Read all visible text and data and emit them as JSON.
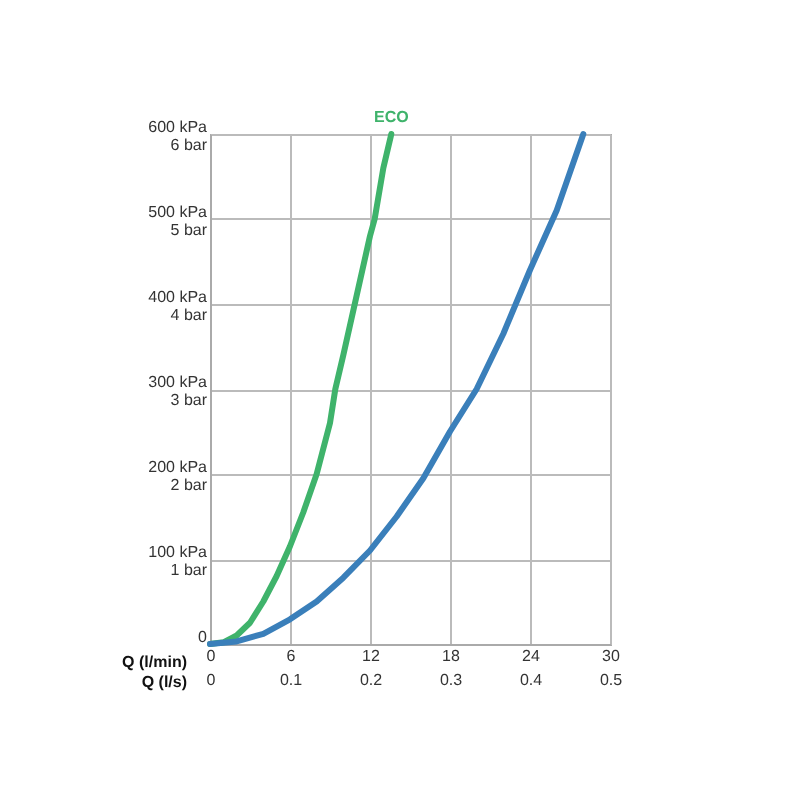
{
  "chart_data": {
    "type": "line",
    "xlabel": "Q (l/min)",
    "x2label": "Q (l/s)",
    "series": [
      {
        "color": "#3fb36b",
        "x": [
          0,
          1,
          2,
          3,
          4,
          5,
          6,
          7,
          8,
          9,
          9.4,
          10,
          11,
          12,
          12.35,
          13,
          13.6
        ],
        "values": [
          0,
          2,
          10,
          25,
          50,
          80,
          115,
          155,
          200,
          260,
          300,
          340,
          410,
          480,
          500,
          560,
          600
        ]
      },
      {
        "color": "#3a7fba",
        "x": [
          0,
          2,
          4,
          6,
          8,
          10,
          12,
          14,
          16,
          18,
          20,
          22,
          24,
          26,
          28
        ],
        "values": [
          0,
          3,
          12,
          29,
          50,
          78,
          110,
          150,
          195,
          250,
          300,
          365,
          440,
          510,
          600
        ]
      }
    ],
    "xlim": [
      0,
      30
    ],
    "xticks": [
      0,
      6,
      12,
      18,
      24,
      30
    ],
    "x2lim": [
      0,
      0.5
    ],
    "x2ticks": [
      0,
      0.1,
      0.2,
      0.3,
      0.4,
      0.5
    ],
    "ylim": [
      0,
      600
    ],
    "yticks": [
      0,
      {
        "value": 100,
        "label": "100 kPa"
      },
      {
        "value": 200,
        "label": "200 kPa"
      },
      {
        "value": 300,
        "label": "300 kPa"
      },
      {
        "value": 400,
        "label": "400 kPa"
      },
      {
        "value": 500,
        "label": "500 kPa"
      },
      {
        "value": 600,
        "label": "600 kPa"
      }
    ],
    "y2lim": [
      0,
      6
    ],
    "y2ticks": [
      {
        "value": 0,
        "label": null
      },
      {
        "value": 1,
        "label": "1 bar"
      },
      {
        "value": 2,
        "label": "2 bar"
      },
      {
        "value": 3,
        "label": "3 bar"
      },
      {
        "value": 4,
        "label": "4 bar"
      },
      {
        "value": 5,
        "label": "5 bar"
      },
      {
        "value": 6,
        "label": "6 bar"
      }
    ],
    "annotations": [
      {
        "text": "ECO",
        "x": 13.6,
        "y": 600
      }
    ],
    "grid": true,
    "marker": "none",
    "line_style": "solid",
    "legend": false
  }
}
